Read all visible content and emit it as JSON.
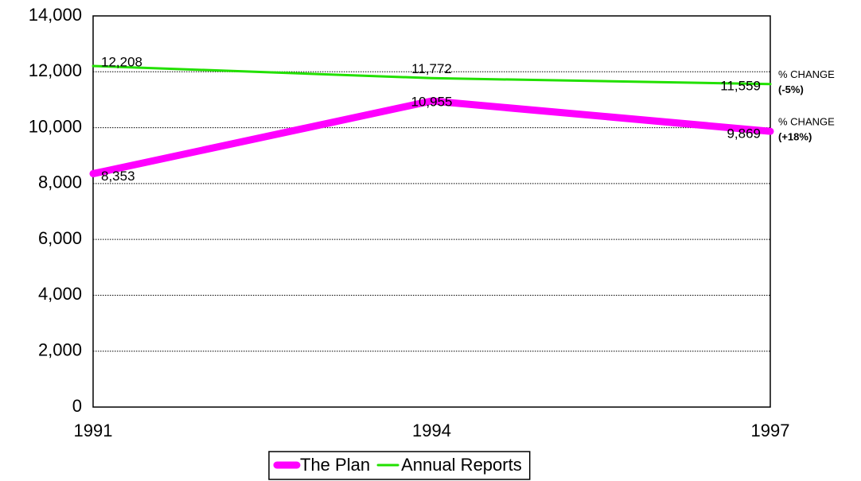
{
  "chart_data": {
    "type": "line",
    "x": [
      1991,
      1994,
      1997
    ],
    "xlim": [
      1991,
      1997
    ],
    "xticks": [
      1991,
      1994,
      1997
    ],
    "ylim": [
      0,
      14000
    ],
    "yticks": [
      0,
      {
        "value": 2000,
        "label": "2,000"
      },
      {
        "value": 4000,
        "label": "4,000"
      },
      {
        "value": 6000,
        "label": "6,000"
      },
      {
        "value": 8000,
        "label": "8,000"
      },
      {
        "value": 10000,
        "label": "10,000"
      },
      {
        "value": 12000,
        "label": "12,000"
      },
      {
        "value": 14000,
        "label": "14,000"
      }
    ],
    "grid": true,
    "legend": "bottom",
    "series": [
      {
        "name": "The Plan",
        "color": "#ff00ff",
        "values": [
          8353,
          10955,
          9869
        ],
        "value_labels": [
          "8,353",
          "10,955",
          "9,869"
        ]
      },
      {
        "name": "Annual Reports",
        "color": "#22e000",
        "values": [
          12208,
          11772,
          11559
        ],
        "value_labels": [
          "12,208",
          "11,772",
          "11,559"
        ]
      }
    ],
    "annotations": [
      {
        "text": "% CHANGE",
        "detail": "(-5%)"
      },
      {
        "text": "% CHANGE",
        "detail": "(+18%)"
      }
    ]
  }
}
